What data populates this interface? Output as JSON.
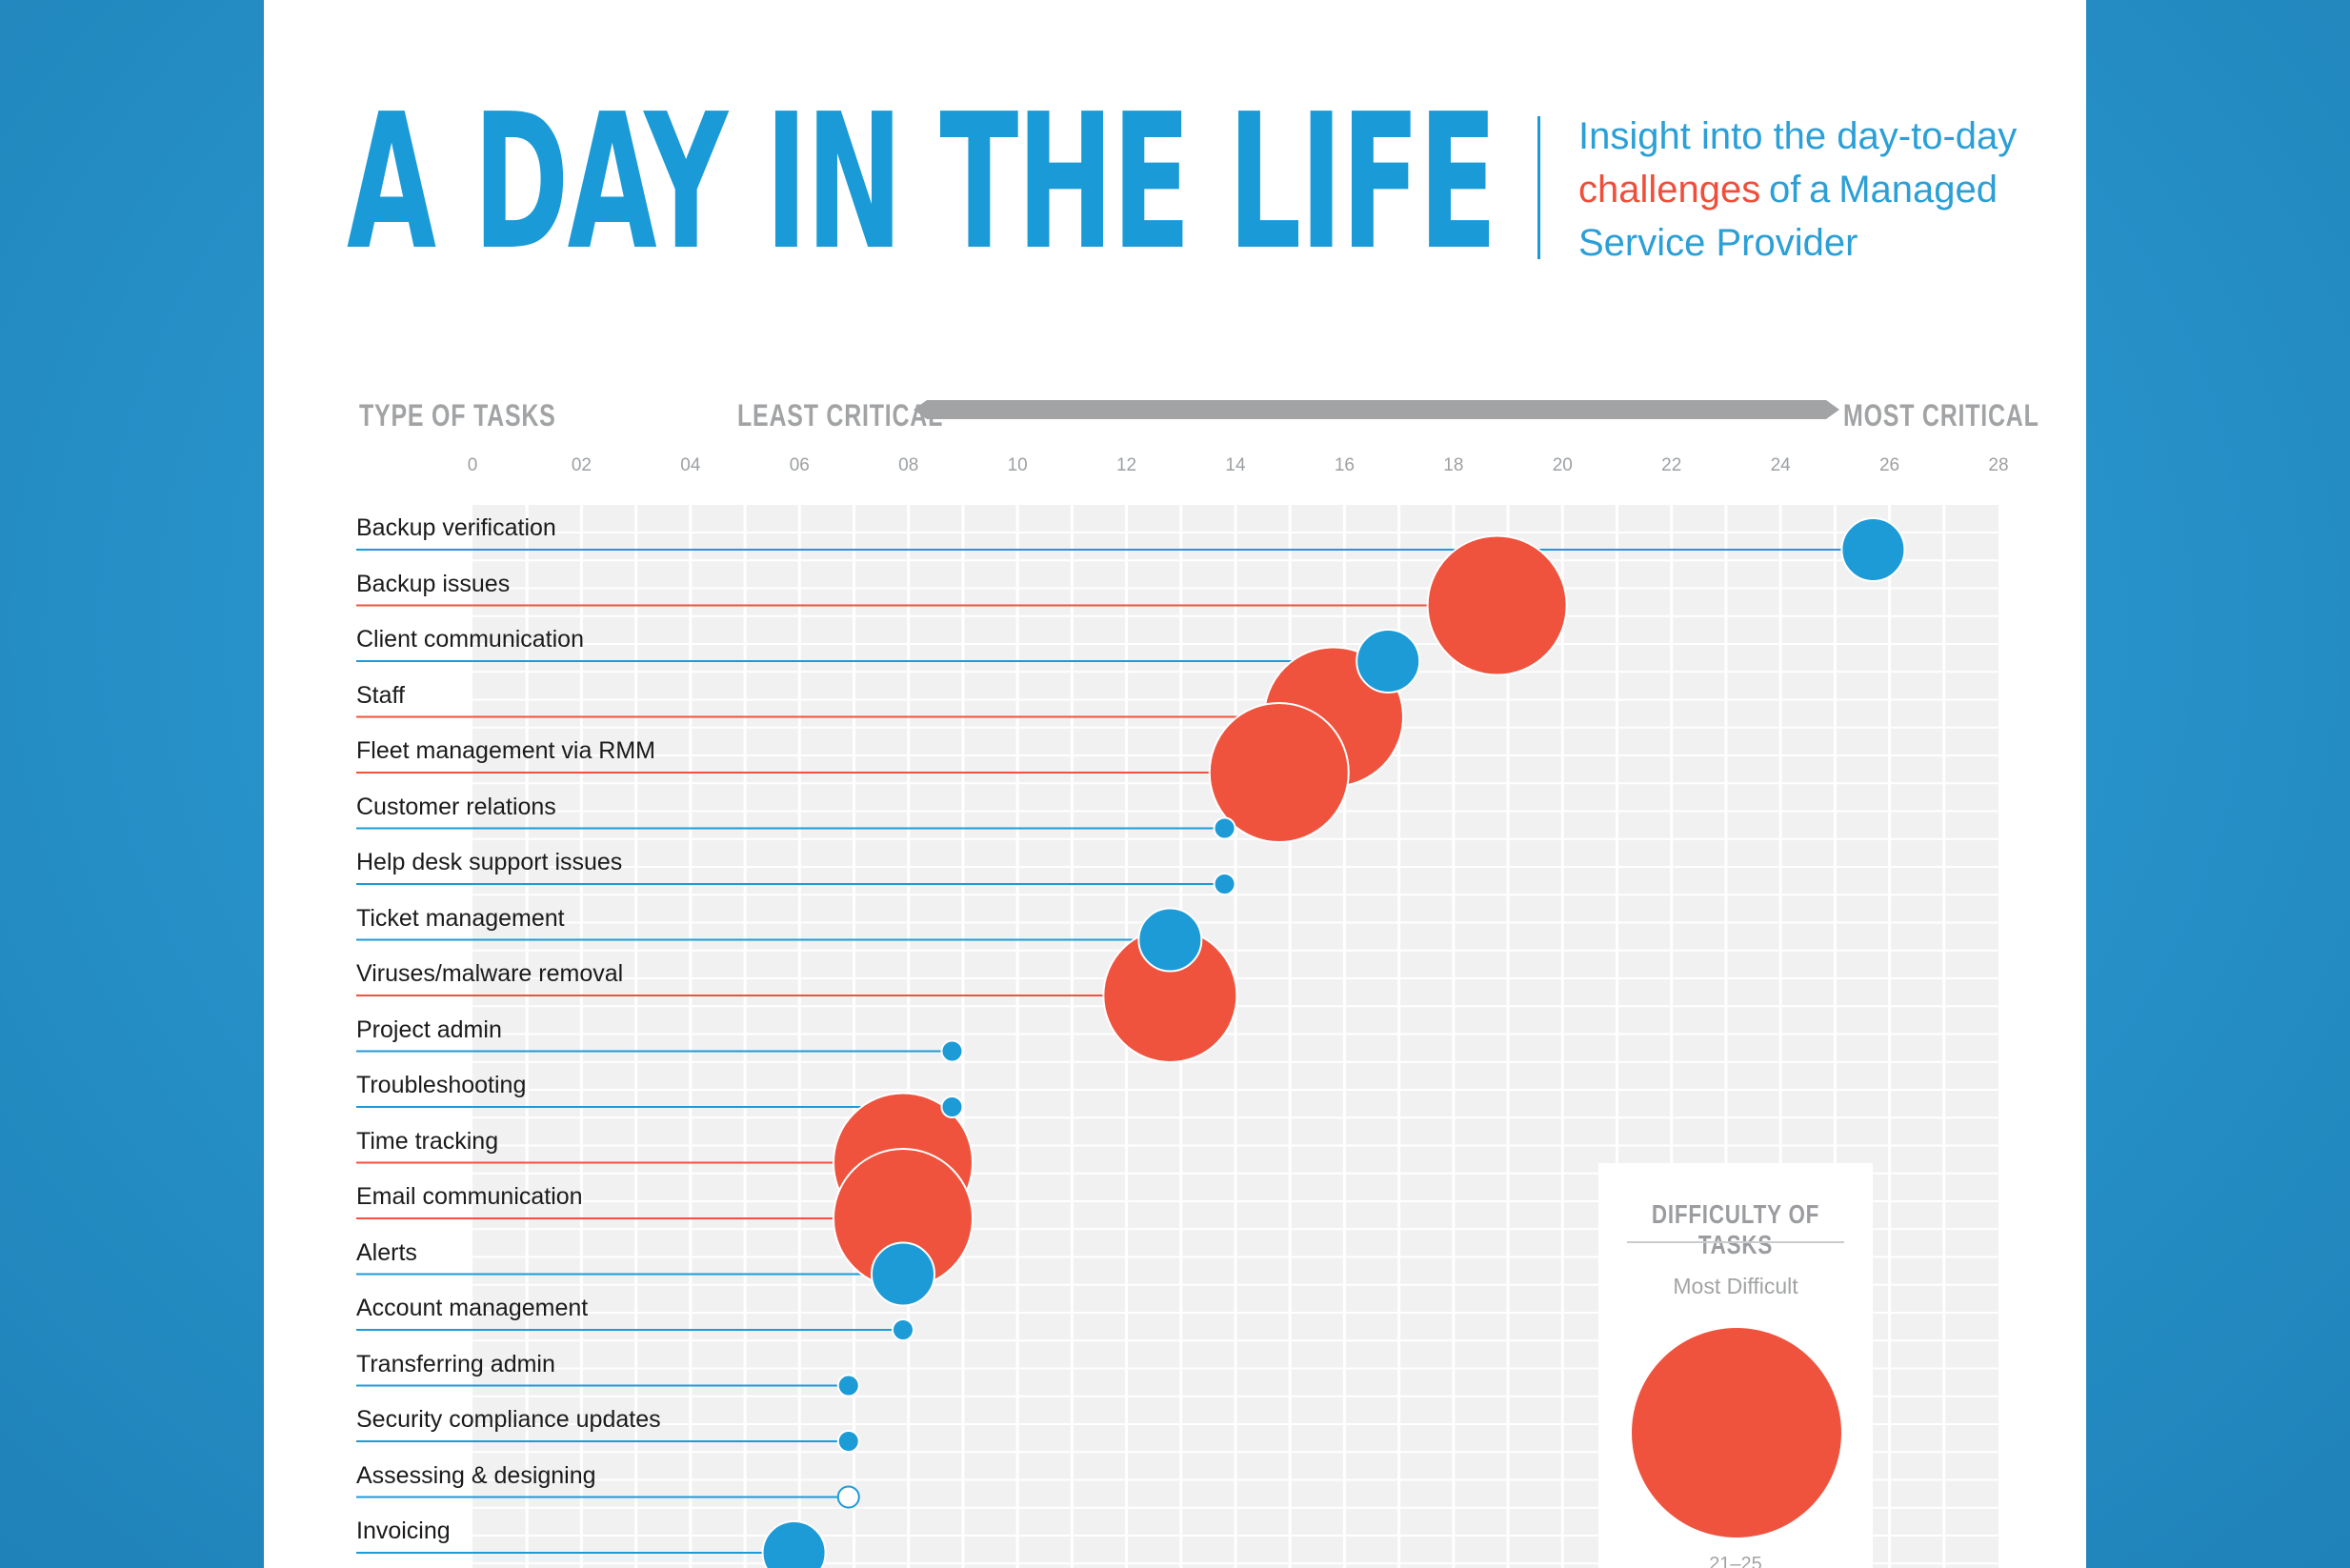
{
  "title": "A DAY IN THE LIFE",
  "subtitle": {
    "line1": "Insight into the day-to-day",
    "line2_highlight": "challenges",
    "line2_of": "of",
    "line2_a": "a",
    "line2_managed": "Managed",
    "line3": "Service Provider"
  },
  "colors": {
    "background": "#2792c9",
    "title_blue": "#1a9ad6",
    "highlight_red": "#ef4e3a",
    "bubble_red": "#ef533e",
    "bubble_blue": "#1c9bd7",
    "grid_bg": "#f1f1f1",
    "axis_grey": "#a1a3a5"
  },
  "chart_data": {
    "type": "scatter",
    "subtype": "lollipop-bubble",
    "xlabel_left": "LEAST CRITICAL",
    "xlabel_right": "MOST CRITICAL",
    "ylabel": "TYPE OF TASKS",
    "xlim": [
      0,
      28
    ],
    "xticks": [
      "0",
      "02",
      "04",
      "06",
      "08",
      "10",
      "12",
      "14",
      "16",
      "18",
      "20",
      "22",
      "24",
      "26",
      "28"
    ],
    "size_meaning": "DIFFICULTY OF TASKS",
    "tasks": [
      {
        "label": "Backup verification",
        "criticality": 25.7,
        "difficulty": 6,
        "color": "blue"
      },
      {
        "label": "Backup issues",
        "criticality": 18.8,
        "difficulty": 20,
        "color": "red"
      },
      {
        "label": "Client communication",
        "criticality": 16.8,
        "difficulty": 6,
        "color": "blue"
      },
      {
        "label": "Staff",
        "criticality": 15.8,
        "difficulty": 20,
        "color": "red"
      },
      {
        "label": "Fleet management via RMM",
        "criticality": 14.8,
        "difficulty": 20,
        "color": "red"
      },
      {
        "label": "Customer relations",
        "criticality": 13.8,
        "difficulty": 1,
        "color": "blue"
      },
      {
        "label": "Help desk support issues",
        "criticality": 13.8,
        "difficulty": 1,
        "color": "blue"
      },
      {
        "label": "Ticket management",
        "criticality": 12.8,
        "difficulty": 6,
        "color": "blue"
      },
      {
        "label": "Viruses/malware removal",
        "criticality": 12.8,
        "difficulty": 24,
        "color": "red"
      },
      {
        "label": "Project admin",
        "criticality": 8.8,
        "difficulty": 1,
        "color": "blue"
      },
      {
        "label": "Troubleshooting",
        "criticality": 8.8,
        "difficulty": 1,
        "color": "blue"
      },
      {
        "label": "Time tracking",
        "criticality": 7.9,
        "difficulty": 20,
        "color": "red"
      },
      {
        "label": "Email communication",
        "criticality": 7.9,
        "difficulty": 20,
        "color": "red"
      },
      {
        "label": "Alerts",
        "criticality": 7.9,
        "difficulty": 6,
        "color": "blue"
      },
      {
        "label": "Account management",
        "criticality": 7.9,
        "difficulty": 1,
        "color": "blue"
      },
      {
        "label": "Transferring admin",
        "criticality": 6.9,
        "difficulty": 1,
        "color": "blue"
      },
      {
        "label": "Security compliance updates",
        "criticality": 6.9,
        "difficulty": 1,
        "color": "blue"
      },
      {
        "label": "Assessing & designing",
        "criticality": 6.9,
        "difficulty": 1,
        "color": "blue-outline"
      },
      {
        "label": "Invoicing",
        "criticality": 5.9,
        "difficulty": 6,
        "color": "blue"
      }
    ]
  },
  "legend": {
    "title": "DIFFICULTY OF TASKS",
    "item_label": "Most Difficult",
    "item_range": "21–25"
  }
}
